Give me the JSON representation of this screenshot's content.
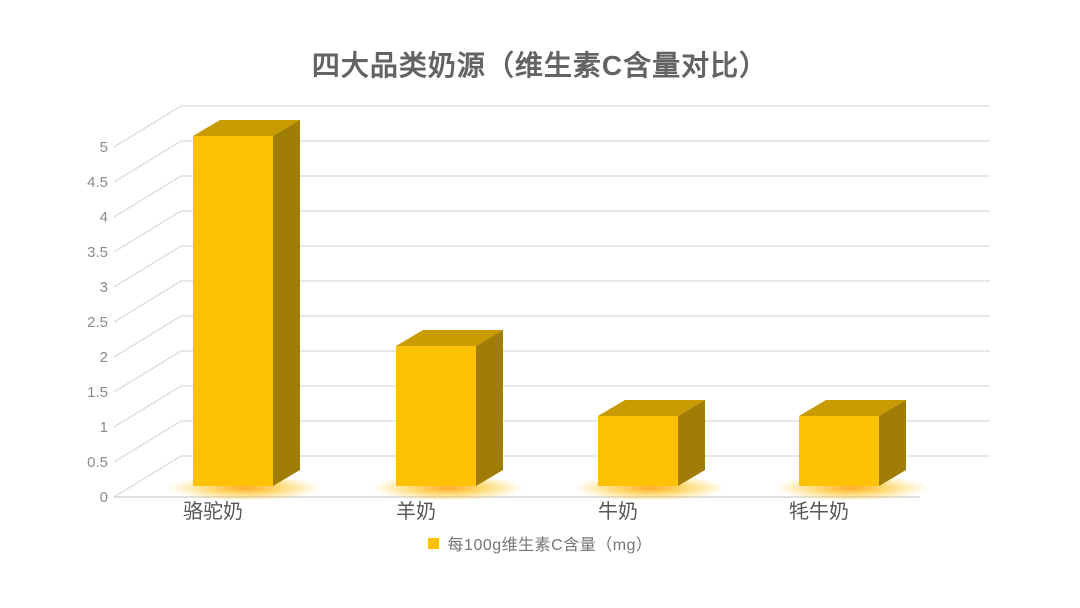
{
  "title": {
    "text": "四大品类奶源（维生素C含量对比）",
    "color": "#636363"
  },
  "legend": {
    "label": "每100g维生素C含量（mg）",
    "marker_color": "#FFC000"
  },
  "chart_data": {
    "type": "bar",
    "style": "3d-column",
    "title": "四大品类奶源（维生素C含量对比）",
    "categories": [
      "骆驼奶",
      "羊奶",
      "牛奶",
      "牦牛奶"
    ],
    "series": [
      {
        "name": "每100g维生素C含量（mg）",
        "values": [
          5,
          2,
          1,
          1
        ]
      }
    ],
    "xlabel": "",
    "ylabel": "",
    "ylim": [
      0,
      5
    ],
    "ytick_step": 0.5,
    "yticks": [
      0,
      0.5,
      1,
      1.5,
      2,
      2.5,
      3,
      3.5,
      4,
      4.5,
      5
    ],
    "ytick_labels": [
      "0",
      "0.5",
      "1",
      "1.5",
      "2",
      "2.5",
      "3",
      "3.5",
      "4",
      "4.5",
      "5"
    ],
    "grid": true,
    "legend_position": "bottom",
    "colors": {
      "bar_front": "#FFC103",
      "bar_top": "#C99B00",
      "bar_side": "#A07D05",
      "glow": "#FF9800",
      "gridline": "#D9D9D9",
      "floor_line": "#CFCFCF",
      "axis_text": "#8C8C8C",
      "category_text": "#575757"
    }
  }
}
